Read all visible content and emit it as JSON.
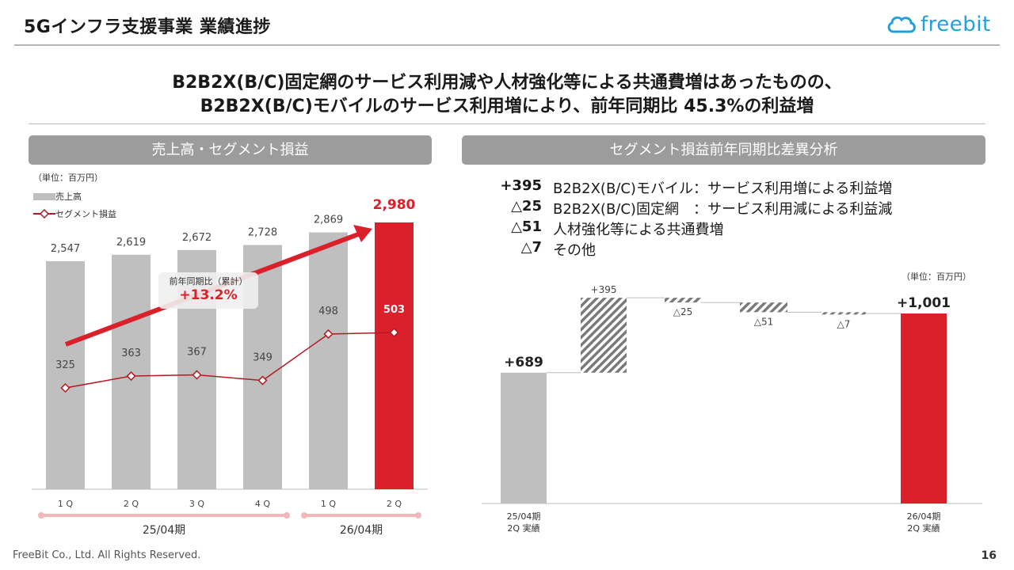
{
  "header": {
    "title": "5Gインフラ支援事業 業績進捗",
    "logo_text": "freebit"
  },
  "headline": {
    "line1": "B2B2X(B/C)固定網のサービス利用減や人材強化等による共通費増はあったものの、",
    "line2": "B2B2X(B/C)モバイルのサービス利用増により、前年同期比 45.3%の利益増"
  },
  "left": {
    "section_title": "売上高・セグメント損益",
    "unit": "（単位：百万円）",
    "legend": {
      "sales": "売上高",
      "profit": "セグメント損益"
    },
    "yoy": {
      "label": "前年同期比（累計）",
      "value": "+13.2%"
    },
    "periods": [
      "25/04期",
      "26/04期"
    ]
  },
  "right": {
    "section_title": "セグメント損益前年同期比差異分析",
    "explanations": [
      {
        "value": "+395",
        "text": "B2B2X(B/C)モバイル：サービス利用増による利益増"
      },
      {
        "value": "△25",
        "text": "B2B2X(B/C)固定網　：サービス利用減による利益減"
      },
      {
        "value": "△51",
        "text": "人材強化等による共通費増"
      },
      {
        "value": "△7",
        "text": "その他"
      }
    ],
    "unit": "（単位：百万円）"
  },
  "footer": {
    "copyright": "FreeBit Co., Ltd. All Rights Reserved.",
    "page": "16"
  },
  "colors": {
    "gray_bar": "#bfbfbf",
    "accent_red": "#d9202b",
    "line_red": "#b01c22",
    "logo_blue": "#1fa1e0"
  },
  "chart_data": [
    {
      "type": "bar",
      "categories": [
        "1Q",
        "2Q",
        "3Q",
        "4Q",
        "1Q",
        "2Q"
      ],
      "category_labels": [
        "1 Q",
        "2 Q",
        "3 Q",
        "4 Q",
        "1 Q",
        "2 Q"
      ],
      "series": [
        {
          "name": "売上高",
          "type": "bar",
          "values": [
            2547,
            2619,
            2672,
            2728,
            2869,
            2980
          ],
          "labels": [
            "2,547",
            "2,619",
            "2,672",
            "2,728",
            "2,869",
            "2,980"
          ]
        },
        {
          "name": "セグメント損益",
          "type": "line",
          "values": [
            325,
            363,
            367,
            349,
            498,
            503
          ],
          "labels": [
            "325",
            "363",
            "367",
            "349",
            "498",
            "503"
          ]
        }
      ],
      "highlight_index": 5,
      "groups": [
        {
          "label": "25/04期",
          "from": 0,
          "to": 3
        },
        {
          "label": "26/04期",
          "from": 4,
          "to": 5
        }
      ]
    },
    {
      "type": "waterfall",
      "categories": [
        "25/04期 2Q 実績",
        "B2B2X(B/C)モバイル",
        "B2B2X(B/C)固定網",
        "人材強化等",
        "その他",
        "26/04期 2Q 実績"
      ],
      "category_labels": [
        [
          "25/04期",
          "2Q 実績"
        ],
        [
          "",
          ""
        ],
        [
          "",
          ""
        ],
        [
          "",
          ""
        ],
        [
          "",
          ""
        ],
        [
          "26/04期",
          "2Q 実績"
        ]
      ],
      "values": [
        689,
        395,
        -25,
        -51,
        -7,
        1001
      ],
      "labels": [
        "+689",
        "+395",
        "△25",
        "△51",
        "△7",
        "+1,001"
      ],
      "kinds": [
        "total",
        "delta",
        "delta",
        "delta",
        "delta",
        "total"
      ]
    }
  ]
}
